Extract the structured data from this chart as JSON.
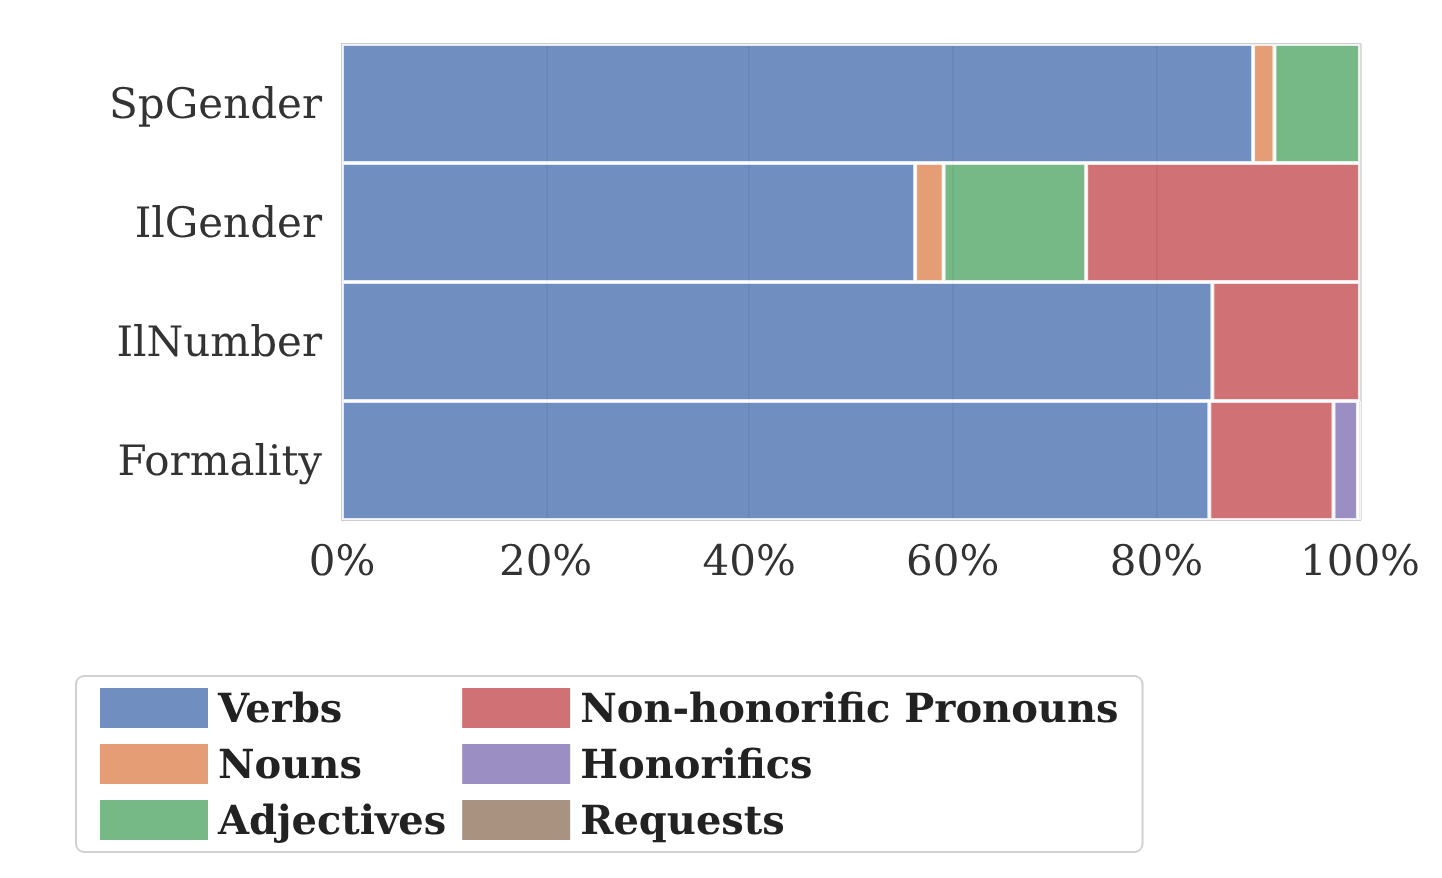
{
  "chart_data": {
    "type": "bar",
    "orientation": "horizontal",
    "stacked": true,
    "categories": [
      "SpGender",
      "IlGender",
      "IlNumber",
      "Formality"
    ],
    "series": [
      {
        "name": "Verbs",
        "color": "#4c72b0",
        "values": [
          89.5,
          56.3,
          85.5,
          85.2
        ]
      },
      {
        "name": "Nouns",
        "color": "#dd8452",
        "values": [
          2.1,
          2.8,
          null,
          null
        ]
      },
      {
        "name": "Adjectives",
        "color": "#55a868",
        "values": [
          8.4,
          14.0,
          null,
          null
        ]
      },
      {
        "name": "Non-honorific Pronouns",
        "color": "#c44e52",
        "values": [
          null,
          26.9,
          14.5,
          12.2
        ]
      },
      {
        "name": "Honorifics",
        "color": "#8172b3",
        "values": [
          null,
          null,
          null,
          2.4
        ]
      },
      {
        "name": "Requests",
        "color": "#937860",
        "values": [
          null,
          null,
          null,
          0.3
        ]
      }
    ],
    "xlim": [
      0,
      100
    ],
    "xticks": [
      {
        "value": 0,
        "label": "0%"
      },
      {
        "value": 20,
        "label": "20%"
      },
      {
        "value": 40,
        "label": "40%"
      },
      {
        "value": 60,
        "label": "60%"
      },
      {
        "value": 80,
        "label": "80%"
      },
      {
        "value": 100,
        "label": "100%"
      }
    ],
    "grid": "x",
    "legend": "bottom"
  }
}
